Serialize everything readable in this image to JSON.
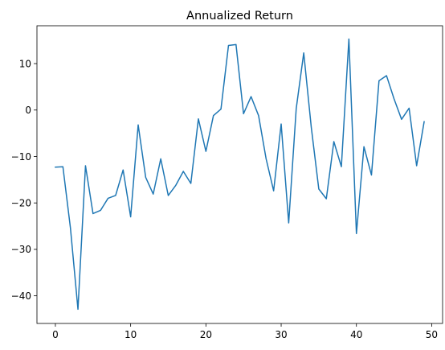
{
  "chart_data": {
    "type": "line",
    "title": "Annualized Return",
    "xlabel": "",
    "ylabel": "",
    "grid": false,
    "xlim": [
      -2.45,
      51.45
    ],
    "ylim": [
      -45.95,
      18.15
    ],
    "x_ticks": [
      0,
      10,
      20,
      30,
      40,
      50
    ],
    "y_ticks": [
      -40,
      -30,
      -20,
      -10,
      0,
      10
    ],
    "series": [
      {
        "color": "#1f77b4",
        "x": [
          0,
          1,
          2,
          3,
          4,
          5,
          6,
          7,
          8,
          9,
          10,
          11,
          12,
          13,
          14,
          15,
          16,
          17,
          18,
          19,
          20,
          21,
          22,
          23,
          24,
          25,
          26,
          27,
          28,
          29,
          30,
          31,
          32,
          33,
          34,
          35,
          36,
          37,
          38,
          39,
          40,
          41,
          42,
          43,
          44,
          45,
          46,
          47,
          48,
          49
        ],
        "values": [
          -12.3,
          -12.2,
          -25.4,
          -42.9,
          -12.0,
          -22.3,
          -21.6,
          -19.0,
          -18.4,
          -12.9,
          -23.0,
          -3.2,
          -14.5,
          -18.1,
          -10.5,
          -18.4,
          -16.2,
          -13.2,
          -15.8,
          -1.9,
          -8.9,
          -1.2,
          0.2,
          13.9,
          14.1,
          -0.8,
          2.9,
          -1.2,
          -10.5,
          -17.4,
          -3.0,
          -24.3,
          0.3,
          12.3,
          -3.7,
          -17.0,
          -19.1,
          -6.8,
          -12.2,
          15.3,
          -26.6,
          -7.9,
          -14.0,
          6.3,
          7.4,
          2.4,
          -2.0,
          0.4,
          -12.0,
          -2.5
        ]
      }
    ]
  }
}
